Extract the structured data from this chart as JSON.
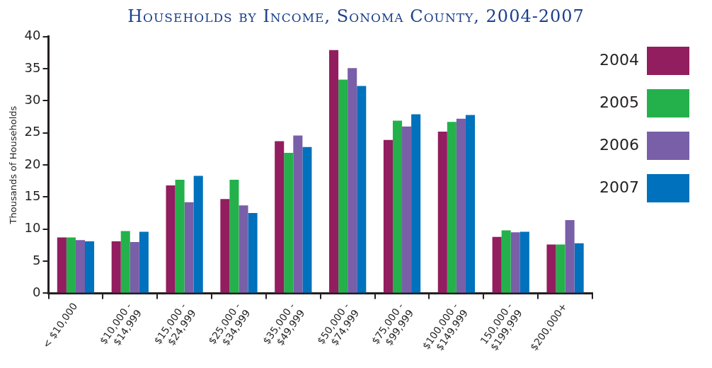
{
  "chart_data": {
    "type": "bar",
    "title": "Households by Income, Sonoma County, 2004-2007",
    "ylabel": "Thousands of Households",
    "categories": [
      "< $10,000",
      "$10,000 - $14,999",
      "$15,000 - $24,999",
      "$25,000 - $34,999",
      "$35,000 - $49,999",
      "$50,000 - $74,999",
      "$75,000 - $99,999",
      "$100,000 - $149,999",
      "150,000 - $199,999",
      "$200,000+"
    ],
    "series": [
      {
        "name": "2004",
        "color": "#921d5f",
        "values": [
          8.7,
          8.1,
          16.8,
          14.7,
          23.7,
          37.9,
          23.9,
          25.2,
          8.8,
          7.6
        ]
      },
      {
        "name": "2005",
        "color": "#24b14b",
        "values": [
          8.7,
          9.7,
          17.7,
          17.7,
          21.9,
          33.3,
          26.9,
          26.7,
          9.8,
          7.6
        ]
      },
      {
        "name": "2006",
        "color": "#785fa8",
        "values": [
          8.3,
          8.0,
          14.2,
          13.7,
          24.6,
          35.1,
          26.0,
          27.2,
          9.5,
          11.4
        ]
      },
      {
        "name": "2007",
        "color": "#0071bc",
        "values": [
          8.1,
          9.6,
          18.3,
          12.5,
          22.8,
          32.3,
          27.9,
          27.8,
          9.6,
          7.8
        ]
      }
    ],
    "ylim": [
      0,
      40
    ],
    "yticks": [
      0,
      5,
      10,
      15,
      20,
      25,
      30,
      35,
      40
    ],
    "grid": false,
    "legend": "top right"
  }
}
